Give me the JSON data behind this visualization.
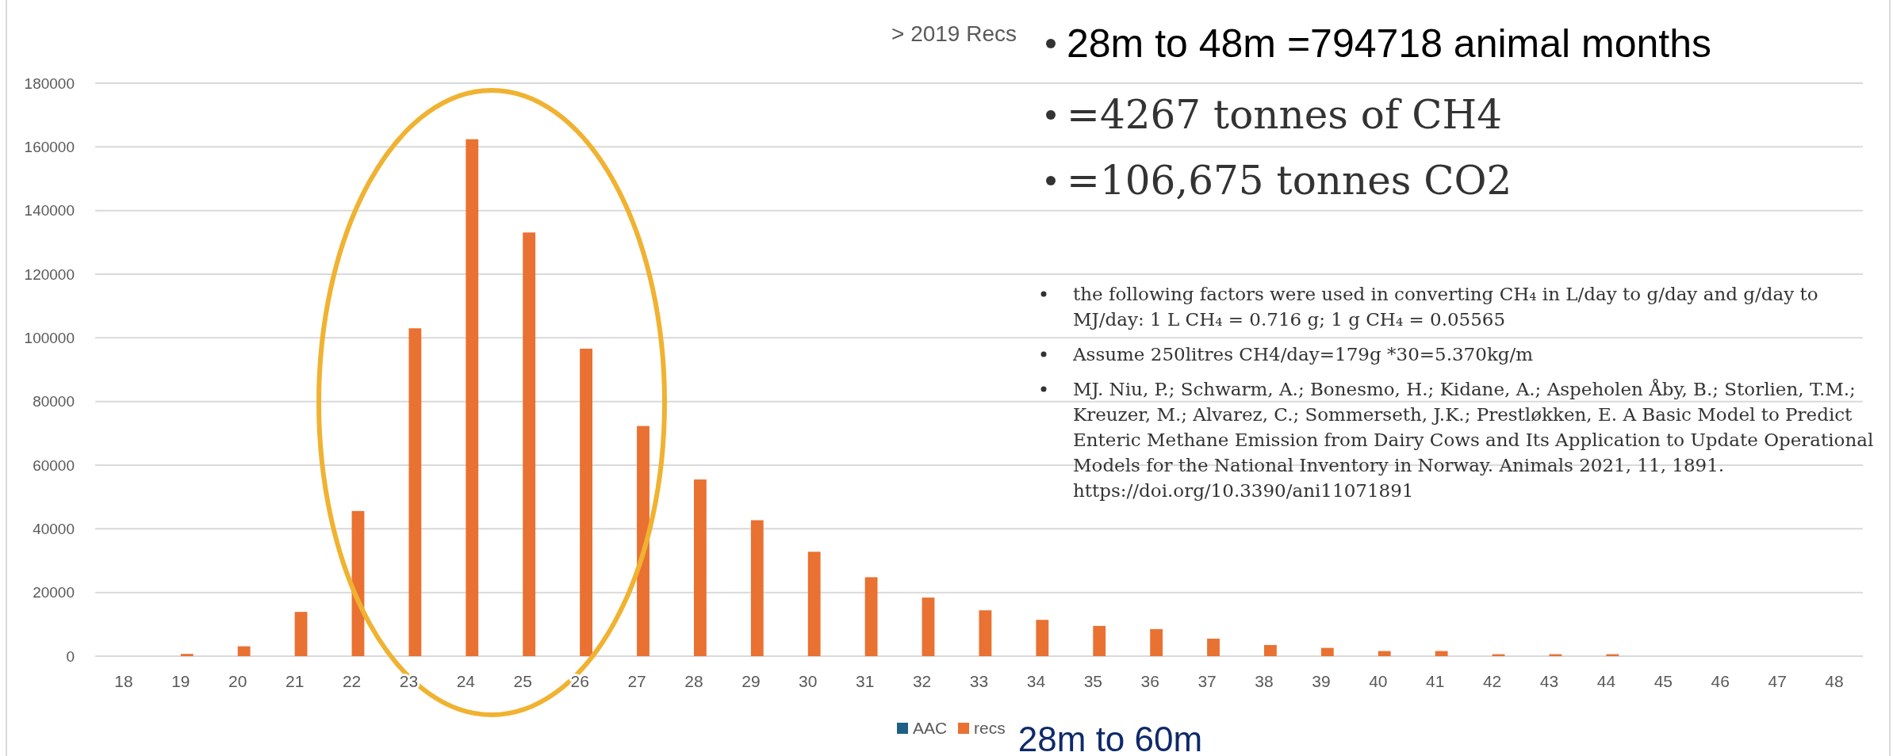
{
  "chart_data": {
    "type": "bar",
    "title": "> 2019 Recs",
    "categories": [
      "18",
      "19",
      "20",
      "21",
      "22",
      "23",
      "24",
      "25",
      "26",
      "27",
      "28",
      "29",
      "30",
      "31",
      "32",
      "33",
      "34",
      "35",
      "36",
      "37",
      "38",
      "39",
      "40",
      "41",
      "42",
      "43",
      "44",
      "45",
      "46",
      "47",
      "48"
    ],
    "series": [
      {
        "name": "AAC",
        "color": "#1f5f85",
        "values": [
          null,
          null,
          null,
          null,
          null,
          null,
          null,
          null,
          null,
          null,
          null,
          null,
          null,
          null,
          null,
          null,
          null,
          null,
          null,
          null,
          null,
          null,
          null,
          null,
          null,
          null,
          null,
          null,
          null,
          null,
          null
        ]
      },
      {
        "name": "recs",
        "color": "#e97132",
        "values": [
          0,
          700,
          3100,
          13900,
          45600,
          103000,
          162400,
          133100,
          96600,
          72300,
          55500,
          42700,
          32800,
          24800,
          18400,
          14400,
          11400,
          9500,
          8500,
          5500,
          3500,
          2600,
          1600,
          1600,
          600,
          600,
          600,
          0,
          0,
          0,
          0
        ]
      }
    ],
    "ylim": [
      0,
      180000
    ],
    "yticks": [
      0,
      20000,
      40000,
      60000,
      80000,
      100000,
      120000,
      140000,
      160000,
      180000
    ],
    "grid": "y",
    "legend": "bottom",
    "annotations": [
      "28m to 48m =794718 animal months",
      "=4267 tonnes of CH4",
      "=106,675 tonnes CO2",
      "the following factors were used in converting CH₄ in L/day to g/day and g/day to MJ/day: 1 L CH₄ = 0.716 g; 1 g CH₄ = 0.05565",
      "Assume 250litres CH4/day=179g *30=5.370kg/m",
      "MJ. Niu, P.; Schwarm, A.; Bonesmo, H.; Kidane, A.; Aspeholen Åby, B.; Storlien, T.M.; Kreuzer, M.; Alvarez, C.; Sommerseth, J.K.; Prestløkken, E. A Basic Model to Predict Enteric Methane Emission from Dairy Cows and Its Application to Update Operational Models for the National Inventory in Norway. Animals 2021, 11, 1891. https://doi.org/10.3390/ani11071891",
      "28m to 60m"
    ]
  }
}
